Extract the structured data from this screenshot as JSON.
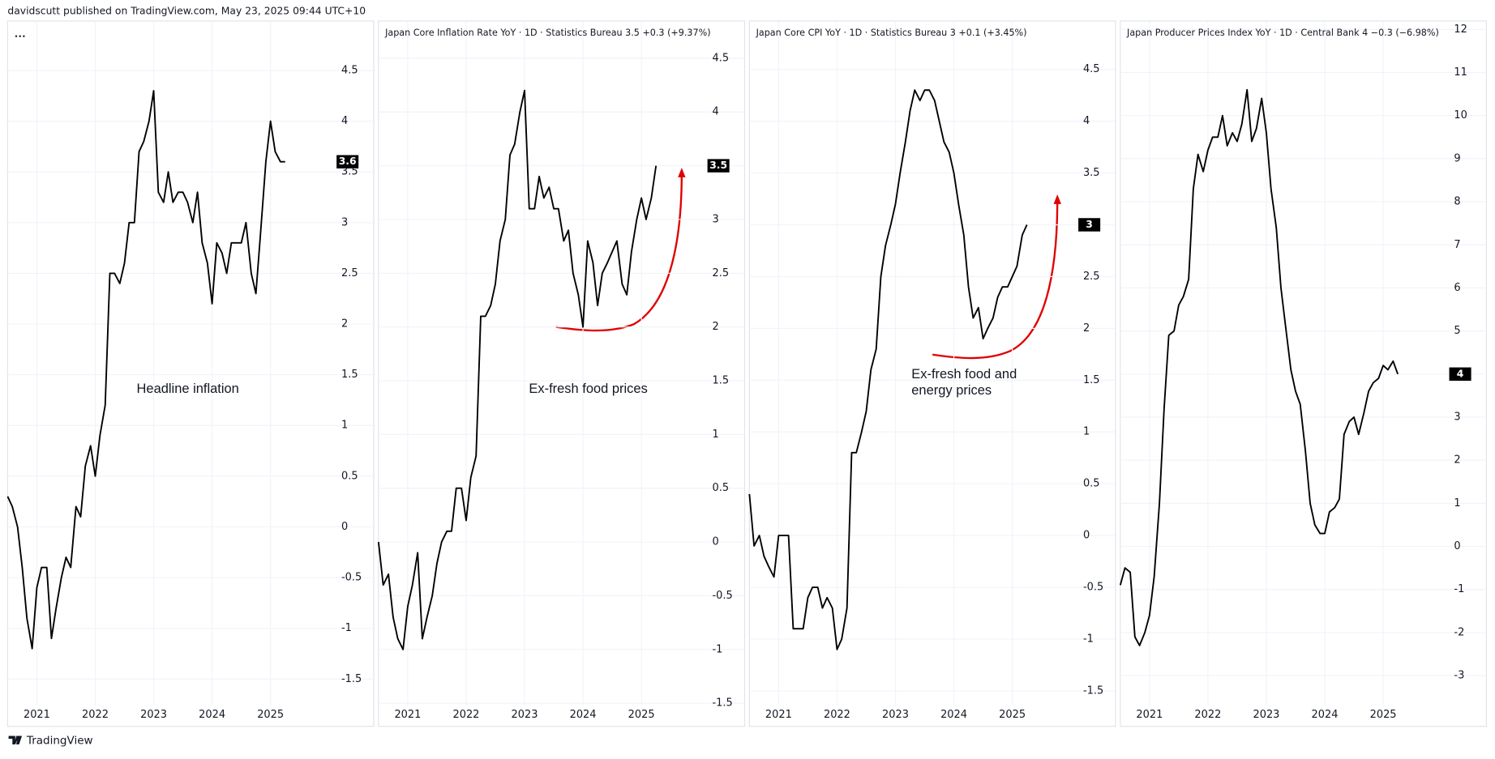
{
  "header": {
    "byline": "davidscutt published on TradingView.com, May 23, 2025 09:44 UTC+10"
  },
  "footer": {
    "brand": "TradingView"
  },
  "chart_data": [
    {
      "type": "line",
      "annotation": "Headline inflation",
      "color": "#000000",
      "grid": true,
      "x": [
        2020.5,
        2020.58,
        2020.67,
        2020.75,
        2020.83,
        2020.92,
        2021,
        2021.08,
        2021.17,
        2021.25,
        2021.33,
        2021.42,
        2021.5,
        2021.58,
        2021.67,
        2021.75,
        2021.83,
        2021.92,
        2022,
        2022.08,
        2022.17,
        2022.25,
        2022.33,
        2022.42,
        2022.5,
        2022.58,
        2022.67,
        2022.75,
        2022.83,
        2022.92,
        2023,
        2023.08,
        2023.17,
        2023.25,
        2023.33,
        2023.42,
        2023.5,
        2023.58,
        2023.67,
        2023.75,
        2023.83,
        2023.92,
        2024,
        2024.08,
        2024.17,
        2024.25,
        2024.33,
        2024.42,
        2024.5,
        2024.58,
        2024.67,
        2024.75,
        2024.83,
        2024.92,
        2025,
        2025.08,
        2025.17,
        2025.25
      ],
      "values": [
        0.3,
        0.2,
        0.0,
        -0.4,
        -0.9,
        -1.2,
        -0.6,
        -0.4,
        -0.4,
        -1.1,
        -0.8,
        -0.5,
        -0.3,
        -0.4,
        0.2,
        0.1,
        0.6,
        0.8,
        0.5,
        0.9,
        1.2,
        2.5,
        2.5,
        2.4,
        2.6,
        3.0,
        3.0,
        3.7,
        3.8,
        4.0,
        4.3,
        3.3,
        3.2,
        3.5,
        3.2,
        3.3,
        3.3,
        3.2,
        3.0,
        3.3,
        2.8,
        2.6,
        2.2,
        2.8,
        2.7,
        2.5,
        2.8,
        2.8,
        2.8,
        3.0,
        2.5,
        2.3,
        2.9,
        3.6,
        4.0,
        3.7,
        3.6,
        3.6
      ],
      "xlim": [
        2020.5,
        2026
      ],
      "xticks": [
        2021,
        2022,
        2023,
        2024,
        2025
      ],
      "ylim": [
        -1.76,
        4.96
      ],
      "yticks": [
        -1.5,
        -1,
        -0.5,
        0,
        0.5,
        1,
        1.5,
        2,
        2.5,
        3,
        3.5,
        4,
        4.5
      ]
    },
    {
      "type": "line",
      "title": "Japan Core Inflation Rate YoY · 1D · Statistics Bureau  3.5  +0.3 (+9.37%)",
      "annotation": "Ex-fresh food prices",
      "color": "#000000",
      "grid": true,
      "x": [
        2020.5,
        2020.58,
        2020.67,
        2020.75,
        2020.83,
        2020.92,
        2021,
        2021.08,
        2021.17,
        2021.25,
        2021.33,
        2021.42,
        2021.5,
        2021.58,
        2021.67,
        2021.75,
        2021.83,
        2021.92,
        2022,
        2022.08,
        2022.17,
        2022.25,
        2022.33,
        2022.42,
        2022.5,
        2022.58,
        2022.67,
        2022.75,
        2022.83,
        2022.92,
        2023,
        2023.08,
        2023.17,
        2023.25,
        2023.33,
        2023.42,
        2023.5,
        2023.58,
        2023.67,
        2023.75,
        2023.83,
        2023.92,
        2024,
        2024.08,
        2024.17,
        2024.25,
        2024.33,
        2024.42,
        2024.5,
        2024.58,
        2024.67,
        2024.75,
        2024.83,
        2024.92,
        2025,
        2025.08,
        2025.17,
        2025.25
      ],
      "values": [
        0.0,
        -0.4,
        -0.3,
        -0.7,
        -0.9,
        -1.0,
        -0.6,
        -0.4,
        -0.1,
        -0.9,
        -0.7,
        -0.5,
        -0.2,
        0.0,
        0.1,
        0.1,
        0.5,
        0.5,
        0.2,
        0.6,
        0.8,
        2.1,
        2.1,
        2.2,
        2.4,
        2.8,
        3.0,
        3.6,
        3.7,
        4.0,
        4.2,
        3.1,
        3.1,
        3.4,
        3.2,
        3.3,
        3.1,
        3.1,
        2.8,
        2.9,
        2.5,
        2.3,
        2.0,
        2.8,
        2.6,
        2.2,
        2.5,
        2.6,
        2.7,
        2.8,
        2.4,
        2.3,
        2.7,
        3.0,
        3.2,
        3.0,
        3.2,
        3.5
      ],
      "xlim": [
        2020.5,
        2026
      ],
      "xticks": [
        2021,
        2022,
        2023,
        2024,
        2025
      ],
      "ylim": [
        -1.52,
        4.82
      ],
      "yticks": [
        -1.5,
        -1,
        -0.5,
        0,
        0.5,
        1,
        1.5,
        2,
        2.5,
        3,
        3.5,
        4,
        4.5
      ]
    },
    {
      "type": "line",
      "title": "Japan Core CPI YoY · 1D · Statistics Bureau  3  +0.1 (+3.45%)",
      "annotation": "Ex-fresh food and energy prices",
      "color": "#000000",
      "grid": true,
      "x": [
        2020.5,
        2020.58,
        2020.67,
        2020.75,
        2020.83,
        2020.92,
        2021,
        2021.08,
        2021.17,
        2021.25,
        2021.33,
        2021.42,
        2021.5,
        2021.58,
        2021.67,
        2021.75,
        2021.83,
        2021.92,
        2022,
        2022.08,
        2022.17,
        2022.25,
        2022.33,
        2022.42,
        2022.5,
        2022.58,
        2022.67,
        2022.75,
        2022.83,
        2022.92,
        2023,
        2023.08,
        2023.17,
        2023.25,
        2023.33,
        2023.42,
        2023.5,
        2023.58,
        2023.67,
        2023.75,
        2023.83,
        2023.92,
        2024,
        2024.08,
        2024.17,
        2024.25,
        2024.33,
        2024.42,
        2024.5,
        2024.58,
        2024.67,
        2024.75,
        2024.83,
        2024.92,
        2025,
        2025.08,
        2025.17,
        2025.25
      ],
      "values": [
        0.4,
        -0.1,
        0.0,
        -0.2,
        -0.3,
        -0.4,
        0.0,
        0.0,
        0.0,
        -0.9,
        -0.9,
        -0.9,
        -0.6,
        -0.5,
        -0.5,
        -0.7,
        -0.6,
        -0.7,
        -1.1,
        -1.0,
        -0.7,
        0.8,
        0.8,
        1.0,
        1.2,
        1.6,
        1.8,
        2.5,
        2.8,
        3.0,
        3.2,
        3.5,
        3.8,
        4.1,
        4.3,
        4.2,
        4.3,
        4.3,
        4.2,
        4.0,
        3.8,
        3.7,
        3.5,
        3.2,
        2.9,
        2.4,
        2.1,
        2.2,
        1.9,
        2.0,
        2.1,
        2.3,
        2.4,
        2.4,
        2.5,
        2.6,
        2.9,
        3.0
      ],
      "xlim": [
        2020.5,
        2026
      ],
      "xticks": [
        2021,
        2022,
        2023,
        2024,
        2025
      ],
      "ylim": [
        -1.64,
        4.94
      ],
      "yticks": [
        -1.5,
        -1,
        -0.5,
        0,
        0.5,
        1,
        1.5,
        2,
        2.5,
        3,
        3.5,
        4,
        4.5
      ]
    },
    {
      "type": "line",
      "title": "Japan Producer Prices Index YoY · 1D · Central Bank  4  −0.3 (−6.98%)",
      "color": "#000000",
      "grid": true,
      "x": [
        2020.5,
        2020.58,
        2020.67,
        2020.75,
        2020.83,
        2020.92,
        2021,
        2021.08,
        2021.17,
        2021.25,
        2021.33,
        2021.42,
        2021.5,
        2021.58,
        2021.67,
        2021.75,
        2021.83,
        2021.92,
        2022,
        2022.08,
        2022.17,
        2022.25,
        2022.33,
        2022.42,
        2022.5,
        2022.58,
        2022.67,
        2022.75,
        2022.83,
        2022.92,
        2023,
        2023.08,
        2023.17,
        2023.25,
        2023.33,
        2023.42,
        2023.5,
        2023.58,
        2023.67,
        2023.75,
        2023.83,
        2023.92,
        2024,
        2024.08,
        2024.17,
        2024.25,
        2024.33,
        2024.42,
        2024.5,
        2024.58,
        2024.67,
        2024.75,
        2024.83,
        2024.92,
        2025,
        2025.08,
        2025.17,
        2025.25
      ],
      "values": [
        -0.9,
        -0.5,
        -0.6,
        -2.1,
        -2.3,
        -2.0,
        -1.6,
        -0.7,
        1.0,
        3.2,
        4.9,
        5.0,
        5.6,
        5.8,
        6.2,
        8.3,
        9.1,
        8.7,
        9.2,
        9.5,
        9.5,
        10.0,
        9.3,
        9.6,
        9.4,
        9.8,
        10.6,
        9.4,
        9.7,
        10.4,
        9.6,
        8.3,
        7.4,
        6.0,
        5.1,
        4.1,
        3.6,
        3.3,
        2.2,
        1.0,
        0.5,
        0.3,
        0.3,
        0.8,
        0.9,
        1.1,
        2.6,
        2.9,
        3.0,
        2.6,
        3.1,
        3.6,
        3.8,
        3.9,
        4.2,
        4.1,
        4.3,
        4.0
      ],
      "xlim": [
        2020.5,
        2026
      ],
      "xticks": [
        2021,
        2022,
        2023,
        2024,
        2025
      ],
      "ylim": [
        -3.69,
        12.13
      ],
      "yticks": [
        -3,
        -2,
        -1,
        0,
        1,
        2,
        3,
        4,
        5,
        6,
        7,
        8,
        9,
        10,
        11,
        12
      ]
    }
  ]
}
